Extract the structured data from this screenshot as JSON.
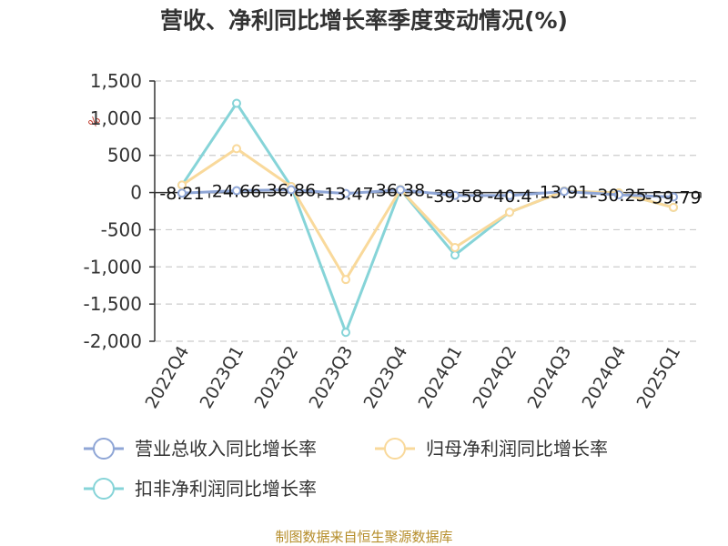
{
  "chart_data": {
    "type": "line",
    "title": "营收、净利同比增长率季度变动情况(%)",
    "unit_label": "%",
    "categories": [
      "2022Q4",
      "2023Q1",
      "2023Q2",
      "2023Q3",
      "2023Q4",
      "2024Q1",
      "2024Q2",
      "2024Q3",
      "2024Q4",
      "2025Q1"
    ],
    "ylim": [
      -2000,
      1500
    ],
    "yticks": [
      1500,
      1000,
      500,
      0,
      -500,
      -1000,
      -1500,
      -2000
    ],
    "ytick_labels": [
      "1,500",
      "1,000",
      "500",
      "0",
      "-500",
      "-1,000",
      "-1,500",
      "-2,000"
    ],
    "grid": true,
    "legend_position": "bottom",
    "series": [
      {
        "name": "营业总收入同比增长率",
        "color": "#8fa6d6",
        "values": [
          -8.21,
          24.66,
          36.86,
          -13.47,
          36.38,
          -39.58,
          -40.4,
          13.91,
          -30.25,
          -59.79
        ],
        "labels": [
          "-8.21",
          "24.66",
          "36.86",
          "-13.47",
          "36.38",
          "-39.58",
          "-40.4",
          "13.91",
          "-30.25",
          "-59.79"
        ]
      },
      {
        "name": "归母净利润同比增长率",
        "color": "#f9d99b",
        "values": [
          100,
          590,
          80,
          -1170,
          40,
          -740,
          -265,
          20,
          -5,
          -200
        ]
      },
      {
        "name": "扣非净利润同比增长率",
        "color": "#86d4d8",
        "values": [
          100,
          1200,
          80,
          -1880,
          40,
          -840,
          -265,
          20,
          -5,
          -200
        ]
      }
    ]
  },
  "footer": {
    "source": "制图数据来自恒生聚源数据库"
  }
}
